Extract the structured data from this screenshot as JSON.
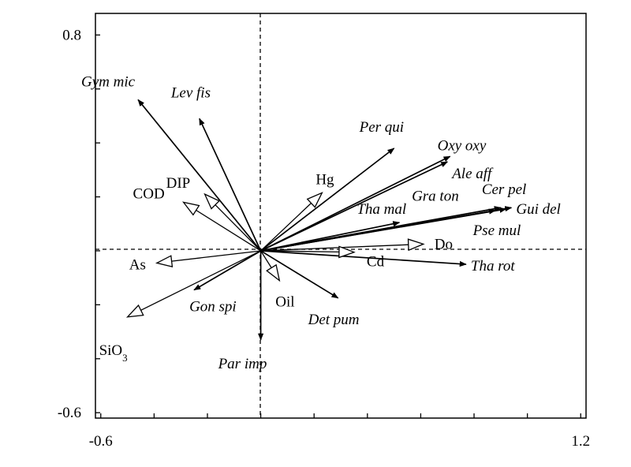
{
  "chart_data": {
    "type": "biplot",
    "xlim": [
      -0.62,
      1.22
    ],
    "ylim": [
      -0.62,
      0.88
    ],
    "x_tick_labels": [
      {
        "value": -0.6,
        "text": "-0.6"
      },
      {
        "value": 1.2,
        "text": "1.2"
      }
    ],
    "y_tick_labels": [
      {
        "value": 0.8,
        "text": "0.8"
      },
      {
        "value": -0.6,
        "text": "-0.6"
      }
    ],
    "x_ticks": [
      -0.6,
      -0.4,
      -0.2,
      0,
      0.2,
      0.4,
      0.6,
      0.8,
      1.0,
      1.2
    ],
    "y_ticks": [
      -0.6,
      -0.4,
      -0.2,
      0,
      0.2,
      0.4,
      0.6,
      0.8
    ],
    "grid": false,
    "species": [
      {
        "label": "Gym mic",
        "x": -0.46,
        "y": 0.56
      },
      {
        "label": "Lev fis",
        "x": -0.23,
        "y": 0.49
      },
      {
        "label": "Per qui",
        "x": 0.5,
        "y": 0.38
      },
      {
        "label": "Oxy oxy",
        "x": 0.71,
        "y": 0.35
      },
      {
        "label": "Ale aff",
        "x": 0.7,
        "y": 0.33
      },
      {
        "label": "Cer pel",
        "x": 0.9,
        "y": 0.16
      },
      {
        "label": "Gra ton",
        "x": 0.88,
        "y": 0.15
      },
      {
        "label": "Gui del",
        "x": 0.94,
        "y": 0.16
      },
      {
        "label": "Pse mul",
        "x": 0.92,
        "y": 0.155
      },
      {
        "label": "Tha mal",
        "x": 0.52,
        "y": 0.105
      },
      {
        "label": "Tha rot",
        "x": 0.77,
        "y": -0.05
      },
      {
        "label": "Det pum",
        "x": 0.29,
        "y": -0.175
      },
      {
        "label": "Par imp",
        "x": 0.0,
        "y": -0.33
      },
      {
        "label": "Gon spi",
        "x": -0.25,
        "y": -0.145
      }
    ],
    "environment": [
      {
        "label": "DIP",
        "x": -0.21,
        "y": 0.21
      },
      {
        "label": "COD",
        "x": -0.29,
        "y": 0.18
      },
      {
        "label": "Hg",
        "x": 0.23,
        "y": 0.215
      },
      {
        "label": "Do",
        "x": 0.61,
        "y": 0.025
      },
      {
        "label": "Cd",
        "x": 0.35,
        "y": -0.005
      },
      {
        "label": "Oil",
        "x": 0.07,
        "y": -0.11
      },
      {
        "label": "As",
        "x": -0.39,
        "y": -0.045
      },
      {
        "label": "SiO3",
        "x": -0.5,
        "y": -0.245
      }
    ]
  }
}
